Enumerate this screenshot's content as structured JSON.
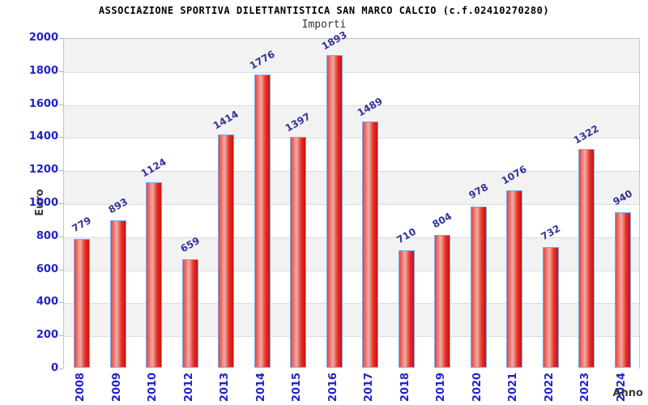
{
  "chart_data": {
    "type": "bar",
    "title": "ASSOCIAZIONE SPORTIVA DILETTANTISTICA SAN MARCO CALCIO (c.f.02410270280)",
    "subtitle": "Importi",
    "xlabel": "Anno",
    "ylabel": "Euro",
    "categories": [
      "2008",
      "2009",
      "2010",
      "2012",
      "2013",
      "2014",
      "2015",
      "2016",
      "2017",
      "2018",
      "2019",
      "2020",
      "2021",
      "2022",
      "2023",
      "2024"
    ],
    "values": [
      779,
      893,
      1124,
      659,
      1414,
      1776,
      1397,
      1893,
      1489,
      710,
      804,
      978,
      1076,
      732,
      1322,
      940
    ],
    "ylim": [
      0,
      2000
    ],
    "ytick_step": 200,
    "yticks": [
      0,
      200,
      400,
      600,
      800,
      1000,
      1200,
      1400,
      1600,
      1800,
      2000
    ],
    "grid": true,
    "legend": "none",
    "colors": {
      "tick_label": "#2222cc",
      "value_label": "#333399",
      "axis_title": "#3c3c3c",
      "band_gray": "#f2f2f2",
      "band_white": "#ffffff",
      "gridline": "#dcdcdc",
      "plot_border": "#c4c4c4",
      "bar_border": "#7aa8e8",
      "bar_red_edge": "#e6453d",
      "bar_red_highlight": "#f2aba5",
      "bar_red_mid": "#e43028",
      "bar_red_dark": "#cc1208"
    }
  }
}
